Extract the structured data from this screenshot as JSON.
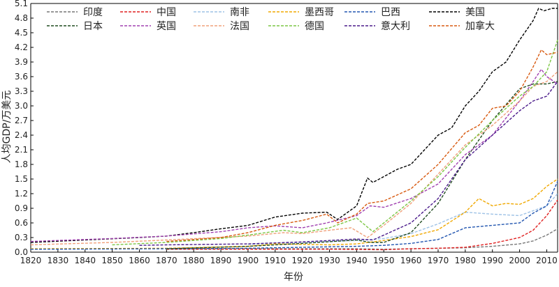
{
  "chart_data": {
    "type": "line",
    "xlabel": "年份",
    "ylabel": "人均GDP/万美元",
    "xlim": [
      1820,
      2014
    ],
    "ylim": [
      0,
      5.1
    ],
    "x_ticks": [
      1820,
      1830,
      1840,
      1850,
      1860,
      1870,
      1880,
      1890,
      1900,
      1910,
      1920,
      1930,
      1940,
      1950,
      1960,
      1970,
      1980,
      1990,
      2000,
      2010
    ],
    "y_ticks": [
      0.0,
      0.3,
      0.6,
      0.9,
      1.2,
      1.5,
      1.8,
      2.1,
      2.4,
      2.7,
      3.0,
      3.3,
      3.6,
      3.9,
      4.2,
      4.5,
      4.8,
      5.1
    ],
    "legend_position": "top-left",
    "grid": false,
    "series": [
      {
        "name": "印度",
        "color": "#777777",
        "x": [
          1870,
          1900,
          1940,
          1950,
          1980,
          1990,
          2000,
          2005,
          2010,
          2014
        ],
        "y": [
          0.07,
          0.07,
          0.07,
          0.06,
          0.09,
          0.12,
          0.17,
          0.23,
          0.35,
          0.48
        ]
      },
      {
        "name": "中国",
        "color": "#e02020",
        "x": [
          1870,
          1900,
          1930,
          1950,
          1960,
          1970,
          1980,
          1990,
          2000,
          2005,
          2010,
          2014
        ],
        "y": [
          0.06,
          0.06,
          0.06,
          0.05,
          0.07,
          0.08,
          0.1,
          0.18,
          0.3,
          0.45,
          0.75,
          1.07
        ]
      },
      {
        "name": "南非",
        "color": "#9ec2e6",
        "x": [
          1900,
          1920,
          1940,
          1950,
          1960,
          1970,
          1980,
          1990,
          2000,
          2010,
          2014
        ],
        "y": [
          0.16,
          0.2,
          0.24,
          0.28,
          0.38,
          0.58,
          0.82,
          0.78,
          0.75,
          0.95,
          1.2
        ]
      },
      {
        "name": "墨西哥",
        "color": "#f0a800",
        "x": [
          1820,
          1870,
          1900,
          1910,
          1930,
          1940,
          1950,
          1960,
          1970,
          1980,
          1985,
          1990,
          1995,
          2000,
          2005,
          2010,
          2014
        ],
        "y": [
          0.07,
          0.08,
          0.12,
          0.17,
          0.15,
          0.17,
          0.24,
          0.32,
          0.46,
          0.82,
          1.1,
          0.95,
          1.0,
          0.98,
          1.1,
          1.35,
          1.5
        ]
      },
      {
        "name": "巴西",
        "color": "#2256b0",
        "x": [
          1820,
          1870,
          1900,
          1920,
          1940,
          1950,
          1960,
          1970,
          1980,
          1990,
          2000,
          2005,
          2010,
          2014
        ],
        "y": [
          0.06,
          0.07,
          0.08,
          0.1,
          0.12,
          0.14,
          0.18,
          0.26,
          0.5,
          0.55,
          0.6,
          0.8,
          0.95,
          1.45
        ]
      },
      {
        "name": "美国",
        "color": "#000000",
        "x": [
          1820,
          1840,
          1860,
          1870,
          1880,
          1890,
          1900,
          1910,
          1920,
          1929,
          1933,
          1940,
          1944,
          1946,
          1950,
          1955,
          1960,
          1965,
          1970,
          1975,
          1980,
          1985,
          1990,
          1995,
          2000,
          2005,
          2007,
          2009,
          2012,
          2014
        ],
        "y": [
          0.2,
          0.25,
          0.3,
          0.33,
          0.4,
          0.48,
          0.55,
          0.72,
          0.8,
          0.82,
          0.67,
          0.95,
          1.52,
          1.43,
          1.55,
          1.7,
          1.8,
          2.1,
          2.4,
          2.55,
          3.0,
          3.3,
          3.7,
          3.9,
          4.35,
          4.75,
          5.0,
          4.95,
          5.0,
          5.0
        ]
      },
      {
        "name": "日本",
        "color": "#1f4a1f",
        "x": [
          1870,
          1900,
          1920,
          1940,
          1945,
          1950,
          1960,
          1970,
          1980,
          1990,
          2000,
          2005,
          2010,
          2014
        ],
        "y": [
          0.07,
          0.12,
          0.18,
          0.25,
          0.2,
          0.2,
          0.4,
          1.0,
          1.9,
          2.7,
          3.35,
          3.45,
          3.45,
          3.5
        ]
      },
      {
        "name": "英国",
        "color": "#a040b0",
        "x": [
          1820,
          1850,
          1870,
          1890,
          1900,
          1910,
          1920,
          1929,
          1940,
          1945,
          1950,
          1960,
          1970,
          1980,
          1990,
          2000,
          2005,
          2008,
          2010,
          2014
        ],
        "y": [
          0.22,
          0.28,
          0.33,
          0.42,
          0.5,
          0.54,
          0.5,
          0.6,
          0.75,
          0.95,
          0.92,
          1.1,
          1.4,
          2.0,
          2.4,
          3.1,
          3.5,
          3.75,
          3.6,
          3.45
        ]
      },
      {
        "name": "法国",
        "color": "#f0a07a",
        "x": [
          1820,
          1850,
          1870,
          1900,
          1913,
          1920,
          1930,
          1938,
          1944,
          1950,
          1960,
          1970,
          1980,
          1990,
          2000,
          2005,
          2010,
          2014
        ],
        "y": [
          0.15,
          0.2,
          0.25,
          0.33,
          0.4,
          0.38,
          0.45,
          0.5,
          0.3,
          0.55,
          1.0,
          1.6,
          2.2,
          2.6,
          3.1,
          3.4,
          3.5,
          3.7
        ]
      },
      {
        "name": "德国",
        "color": "#7cc644",
        "x": [
          1850,
          1870,
          1890,
          1900,
          1913,
          1920,
          1930,
          1940,
          1946,
          1950,
          1960,
          1970,
          1980,
          1990,
          2000,
          2005,
          2010,
          2014
        ],
        "y": [
          0.15,
          0.2,
          0.28,
          0.35,
          0.45,
          0.4,
          0.5,
          0.7,
          0.42,
          0.6,
          1.05,
          1.55,
          2.15,
          2.7,
          3.2,
          3.4,
          3.7,
          4.35
        ]
      },
      {
        "name": "意大利",
        "color": "#4a1a8a",
        "x": [
          1860,
          1870,
          1900,
          1920,
          1930,
          1940,
          1946,
          1950,
          1960,
          1970,
          1980,
          1990,
          2000,
          2005,
          2010,
          2014
        ],
        "y": [
          0.14,
          0.15,
          0.17,
          0.21,
          0.24,
          0.27,
          0.25,
          0.35,
          0.6,
          1.1,
          1.9,
          2.4,
          2.9,
          3.1,
          3.2,
          3.5
        ]
      },
      {
        "name": "加拿大",
        "color": "#d85a10",
        "x": [
          1870,
          1890,
          1900,
          1910,
          1920,
          1929,
          1933,
          1940,
          1944,
          1950,
          1960,
          1970,
          1980,
          1985,
          1990,
          1995,
          2000,
          2005,
          2008,
          2010,
          2014
        ],
        "y": [
          0.22,
          0.3,
          0.4,
          0.55,
          0.65,
          0.78,
          0.6,
          0.78,
          1.0,
          1.05,
          1.3,
          1.8,
          2.45,
          2.6,
          2.95,
          3.0,
          3.3,
          3.8,
          4.15,
          4.05,
          4.1
        ]
      }
    ]
  }
}
